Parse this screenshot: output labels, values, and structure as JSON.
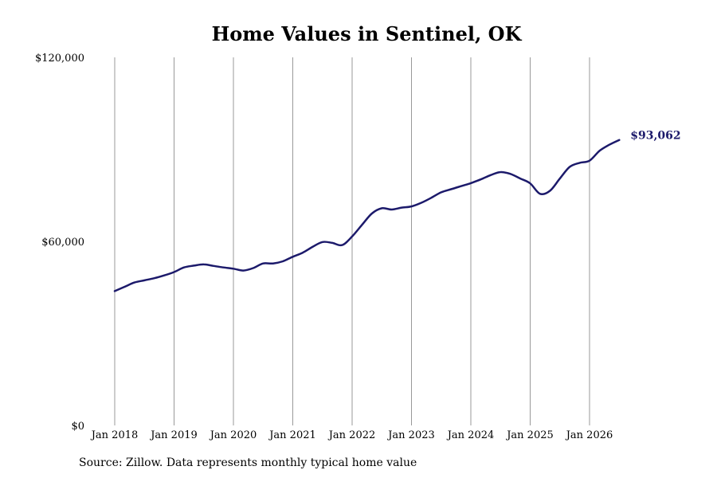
{
  "chart_data": {
    "type": "line",
    "title": "Home Values in Sentinel, OK",
    "xlabel": "",
    "ylabel": "",
    "ylim": [
      0,
      120000
    ],
    "y_ticks": [
      0,
      60000,
      120000
    ],
    "y_tick_labels": [
      "$0",
      "$60,000",
      "$120,000"
    ],
    "x_ticks": [
      "2018-01",
      "2019-01",
      "2020-01",
      "2021-01",
      "2022-01",
      "2023-01",
      "2024-01",
      "2025-01",
      "2026-01"
    ],
    "x_tick_labels": [
      "Jan 2018",
      "Jan 2019",
      "Jan 2020",
      "Jan 2021",
      "Jan 2022",
      "Jan 2023",
      "Jan 2024",
      "Jan 2025",
      "Jan 2026"
    ],
    "vertical_grid": true,
    "horizontal_grid": false,
    "end_label": "$93,062",
    "series": [
      {
        "color": "#1c1a6b",
        "points": [
          [
            "2018-01",
            43800
          ],
          [
            "2018-03",
            45200
          ],
          [
            "2018-05",
            46600
          ],
          [
            "2018-07",
            47300
          ],
          [
            "2018-09",
            48000
          ],
          [
            "2018-11",
            48900
          ],
          [
            "2019-01",
            50000
          ],
          [
            "2019-03",
            51500
          ],
          [
            "2019-05",
            52100
          ],
          [
            "2019-07",
            52500
          ],
          [
            "2019-09",
            52000
          ],
          [
            "2019-11",
            51500
          ],
          [
            "2020-01",
            51100
          ],
          [
            "2020-03",
            50500
          ],
          [
            "2020-05",
            51300
          ],
          [
            "2020-07",
            52800
          ],
          [
            "2020-09",
            52800
          ],
          [
            "2020-11",
            53500
          ],
          [
            "2021-01",
            55000
          ],
          [
            "2021-03",
            56300
          ],
          [
            "2021-05",
            58200
          ],
          [
            "2021-07",
            59800
          ],
          [
            "2021-09",
            59500
          ],
          [
            "2021-11",
            58800
          ],
          [
            "2022-01",
            61600
          ],
          [
            "2022-03",
            65400
          ],
          [
            "2022-05",
            69100
          ],
          [
            "2022-07",
            70800
          ],
          [
            "2022-09",
            70400
          ],
          [
            "2022-11",
            71000
          ],
          [
            "2023-01",
            71400
          ],
          [
            "2023-03",
            72600
          ],
          [
            "2023-05",
            74200
          ],
          [
            "2023-07",
            76000
          ],
          [
            "2023-09",
            77000
          ],
          [
            "2023-11",
            78000
          ],
          [
            "2024-01",
            79000
          ],
          [
            "2024-03",
            80200
          ],
          [
            "2024-05",
            81600
          ],
          [
            "2024-07",
            82600
          ],
          [
            "2024-09",
            82000
          ],
          [
            "2024-11",
            80500
          ],
          [
            "2025-01",
            78900
          ],
          [
            "2025-03",
            75500
          ],
          [
            "2025-05",
            76500
          ],
          [
            "2025-07",
            80500
          ],
          [
            "2025-09",
            84300
          ],
          [
            "2025-11",
            85600
          ],
          [
            "2026-01",
            86300
          ],
          [
            "2026-03",
            89500
          ],
          [
            "2026-05",
            91500
          ],
          [
            "2026-07",
            93062
          ]
        ]
      }
    ]
  },
  "footer": {
    "source": "Source: Zillow. Data represents monthly typical home value"
  }
}
